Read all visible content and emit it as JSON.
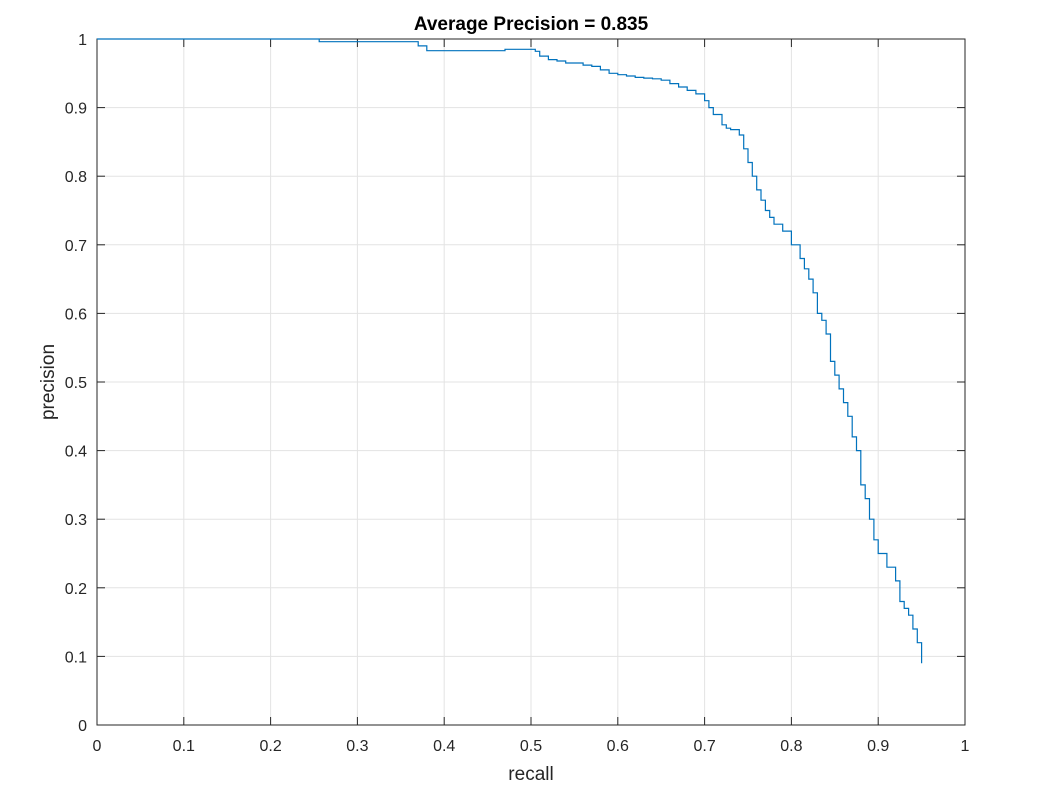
{
  "chart_data": {
    "type": "line",
    "title": "Average Precision = 0.835",
    "xlabel": "recall",
    "ylabel": "precision",
    "xlim": [
      0,
      1
    ],
    "ylim": [
      0,
      1
    ],
    "x_ticks": [
      "0",
      "0.1",
      "0.2",
      "0.3",
      "0.4",
      "0.5",
      "0.6",
      "0.7",
      "0.8",
      "0.9",
      "1"
    ],
    "y_ticks": [
      "0",
      "0.1",
      "0.2",
      "0.3",
      "0.4",
      "0.5",
      "0.6",
      "0.7",
      "0.8",
      "0.9",
      "1"
    ],
    "grid": true,
    "line_color": "#0072bd",
    "series": [
      {
        "name": "",
        "x": [
          0,
          0.256,
          0.256,
          0.37,
          0.37,
          0.38,
          0.38,
          0.47,
          0.47,
          0.5,
          0.505,
          0.51,
          0.52,
          0.53,
          0.54,
          0.55,
          0.56,
          0.57,
          0.58,
          0.59,
          0.6,
          0.61,
          0.62,
          0.63,
          0.64,
          0.65,
          0.66,
          0.67,
          0.68,
          0.69,
          0.7,
          0.705,
          0.71,
          0.72,
          0.725,
          0.73,
          0.74,
          0.745,
          0.75,
          0.755,
          0.76,
          0.765,
          0.77,
          0.775,
          0.78,
          0.79,
          0.8,
          0.81,
          0.815,
          0.82,
          0.825,
          0.83,
          0.835,
          0.84,
          0.845,
          0.85,
          0.855,
          0.86,
          0.865,
          0.87,
          0.875,
          0.88,
          0.885,
          0.89,
          0.895,
          0.9,
          0.91,
          0.92,
          0.925,
          0.93,
          0.935,
          0.94,
          0.945,
          0.95
        ],
        "y": [
          1.0,
          1.0,
          0.996,
          0.996,
          0.99,
          0.99,
          0.983,
          0.983,
          0.985,
          0.985,
          0.982,
          0.975,
          0.97,
          0.968,
          0.965,
          0.965,
          0.962,
          0.96,
          0.955,
          0.95,
          0.948,
          0.946,
          0.944,
          0.943,
          0.942,
          0.94,
          0.935,
          0.93,
          0.925,
          0.92,
          0.91,
          0.9,
          0.89,
          0.875,
          0.87,
          0.868,
          0.86,
          0.84,
          0.82,
          0.8,
          0.78,
          0.765,
          0.75,
          0.74,
          0.73,
          0.72,
          0.7,
          0.68,
          0.665,
          0.65,
          0.63,
          0.6,
          0.59,
          0.57,
          0.53,
          0.51,
          0.49,
          0.47,
          0.45,
          0.42,
          0.4,
          0.35,
          0.33,
          0.3,
          0.27,
          0.25,
          0.23,
          0.21,
          0.18,
          0.17,
          0.16,
          0.14,
          0.12,
          0.09
        ]
      }
    ]
  }
}
